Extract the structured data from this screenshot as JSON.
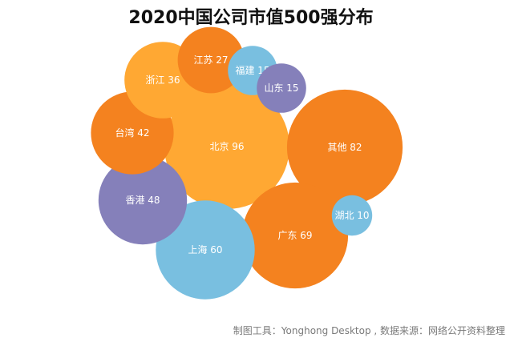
{
  "chart_data": {
    "type": "bubble",
    "title": "2020中国公司市值500强分布",
    "points": [
      {
        "label": "北京",
        "value": 96,
        "color": "#ffa833"
      },
      {
        "label": "其他",
        "value": 82,
        "color": "#f4821f"
      },
      {
        "label": "广东",
        "value": 69,
        "color": "#f4821f"
      },
      {
        "label": "上海",
        "value": 60,
        "color": "#79bfe0"
      },
      {
        "label": "香港",
        "value": 48,
        "color": "#8580ba"
      },
      {
        "label": "台湾",
        "value": 42,
        "color": "#f4821f"
      },
      {
        "label": "浙江",
        "value": 36,
        "color": "#ffa833"
      },
      {
        "label": "江苏",
        "value": 27,
        "color": "#f4821f"
      },
      {
        "label": "福建",
        "value": 15,
        "color": "#79bfe0"
      },
      {
        "label": "山东",
        "value": 15,
        "color": "#8580ba"
      },
      {
        "label": "湖北",
        "value": 10,
        "color": "#79bfe0"
      }
    ]
  },
  "footer": {
    "credit": "制图工具：Yonghong Desktop , 数据来源：网络公开资料整理"
  }
}
